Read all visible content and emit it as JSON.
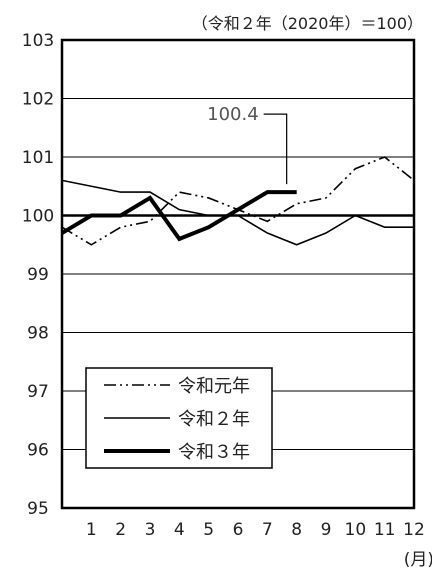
{
  "chart_data": {
    "type": "line",
    "note": "（令和２年（2020年）＝100）",
    "x_unit": "(月)",
    "x": [
      1,
      2,
      3,
      4,
      5,
      6,
      7,
      8,
      9,
      10,
      11,
      12
    ],
    "x_tick_labels": [
      "1",
      "2",
      "3",
      "4",
      "5",
      "6",
      "7",
      "8",
      "9",
      "10",
      "11",
      "12"
    ],
    "y_tick_labels": [
      "103",
      "102",
      "101",
      "100",
      "99",
      "98",
      "97",
      "96",
      "95"
    ],
    "y_ticks": [
      103,
      102,
      101,
      100,
      99,
      98,
      97,
      96,
      95
    ],
    "ylim": [
      95,
      103
    ],
    "xlim": [
      0,
      12
    ],
    "grid": true,
    "baseline": 100,
    "series": [
      {
        "name": "令和元年",
        "style": "dash-dot-dot",
        "x": [
          0,
          1,
          2,
          3,
          4,
          5,
          6,
          7,
          8,
          9,
          10,
          11,
          12
        ],
        "values": [
          99.8,
          99.5,
          99.8,
          99.9,
          100.4,
          100.3,
          100.1,
          99.9,
          100.2,
          100.3,
          100.8,
          101.0,
          100.6
        ]
      },
      {
        "name": "令和２年",
        "style": "solid",
        "x": [
          0,
          1,
          2,
          3,
          4,
          5,
          6,
          7,
          8,
          9,
          10,
          11,
          12
        ],
        "values": [
          100.6,
          100.5,
          100.4,
          100.4,
          100.1,
          100.0,
          100.0,
          99.7,
          99.5,
          99.7,
          100.0,
          99.8,
          99.8
        ]
      },
      {
        "name": "令和３年",
        "style": "bold",
        "x": [
          0,
          1,
          2,
          3,
          4,
          5,
          6,
          7,
          8
        ],
        "values": [
          99.7,
          100.0,
          100.0,
          100.3,
          99.6,
          99.8,
          100.1,
          100.4,
          100.4
        ]
      }
    ],
    "annotation": {
      "text": "100.4",
      "x": 8,
      "y": 100.4
    },
    "legend": {
      "placement": "bottom-left"
    }
  }
}
